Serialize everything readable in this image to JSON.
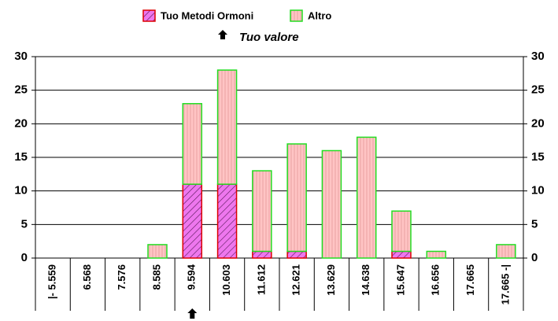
{
  "chart_data": {
    "type": "bar",
    "stacked": true,
    "categories": [
      "|- 5.559",
      "6.568",
      "7.576",
      "8.585",
      "9.594",
      "10.603",
      "11.612",
      "12.621",
      "13.629",
      "14.638",
      "15.647",
      "16.656",
      "17.665",
      "17.665 -|"
    ],
    "series": [
      {
        "name": "Tuo Metodi Ormoni",
        "color": "#ee77ee",
        "values": [
          0,
          0,
          0,
          0,
          11,
          11,
          1,
          1,
          0,
          0,
          1,
          0,
          0,
          0
        ]
      },
      {
        "name": "Altro",
        "color": "#ffc4c4",
        "values": [
          0,
          0,
          0,
          2,
          12,
          17,
          12,
          16,
          16,
          18,
          6,
          1,
          0,
          2
        ]
      }
    ],
    "annotation": {
      "text": "Tuo valore",
      "category_index": 4
    },
    "ylim": [
      0,
      30
    ],
    "yticks": [
      0,
      5,
      10,
      15,
      20,
      25,
      30
    ],
    "grid": true,
    "legend": "top"
  }
}
